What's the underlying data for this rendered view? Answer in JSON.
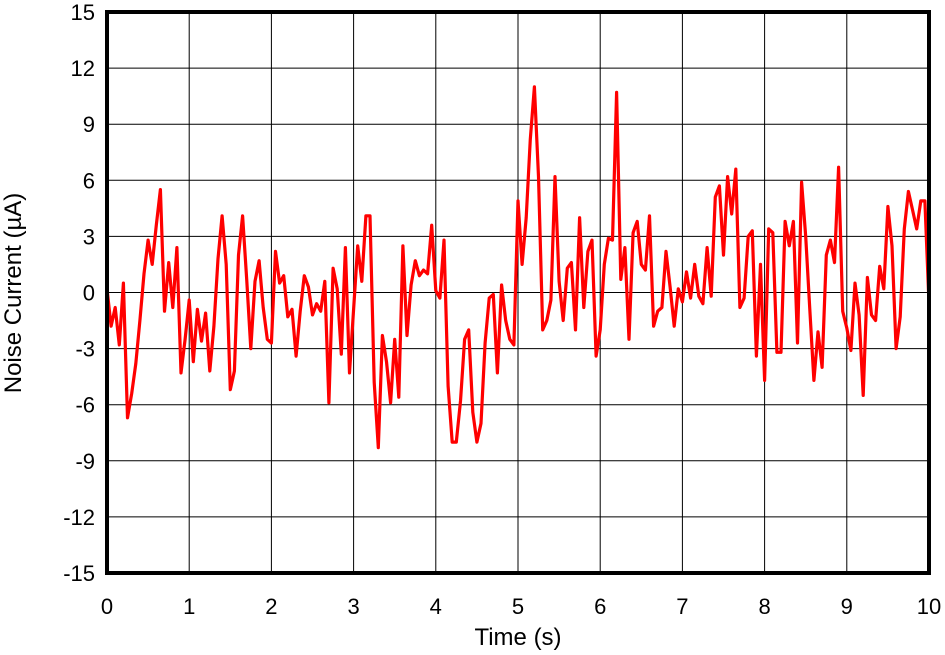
{
  "chart_data": {
    "type": "line",
    "title": "",
    "xlabel": "Time (s)",
    "ylabel": "Noise Current (µA)",
    "xlim": [
      0,
      10
    ],
    "ylim": [
      -15,
      15
    ],
    "x_ticks": [
      0,
      1,
      2,
      3,
      4,
      5,
      6,
      7,
      8,
      9,
      10
    ],
    "y_ticks": [
      15,
      12,
      9,
      6,
      3,
      0,
      -3,
      -6,
      -9,
      -12,
      -15
    ],
    "x_tick_labels": [
      "0",
      "1",
      "2",
      "3",
      "4",
      "5",
      "6",
      "7",
      "8",
      "9",
      "10"
    ],
    "y_tick_labels": [
      "15",
      "12",
      "9",
      "6",
      "3",
      "0",
      "-3",
      "-6",
      "-9",
      "-12",
      "-15"
    ],
    "grid": true,
    "series": [
      {
        "color": "#ff0000",
        "x": [
          0,
          0.05,
          0.1,
          0.15,
          0.2,
          0.25,
          0.3,
          0.35,
          0.4,
          0.45,
          0.5,
          0.55,
          0.6,
          0.65,
          0.7,
          0.75,
          0.8,
          0.85,
          0.9,
          0.95,
          1.0,
          1.05,
          1.1,
          1.15,
          1.2,
          1.25,
          1.3,
          1.35,
          1.4,
          1.45,
          1.5,
          1.55,
          1.6,
          1.65,
          1.7,
          1.75,
          1.8,
          1.85,
          1.9,
          1.95,
          2.0,
          2.05,
          2.1,
          2.15,
          2.2,
          2.25,
          2.3,
          2.35,
          2.4,
          2.45,
          2.5,
          2.55,
          2.6,
          2.65,
          2.7,
          2.75,
          2.8,
          2.85,
          2.9,
          2.95,
          3.0,
          3.05,
          3.1,
          3.15,
          3.2,
          3.25,
          3.3,
          3.35,
          3.4,
          3.45,
          3.5,
          3.55,
          3.6,
          3.65,
          3.7,
          3.75,
          3.8,
          3.85,
          3.9,
          3.95,
          4.0,
          4.05,
          4.1,
          4.15,
          4.2,
          4.25,
          4.3,
          4.35,
          4.4,
          4.45,
          4.5,
          4.55,
          4.6,
          4.65,
          4.7,
          4.75,
          4.8,
          4.85,
          4.9,
          4.95,
          5.0,
          5.05,
          5.1,
          5.15,
          5.2,
          5.25,
          5.3,
          5.35,
          5.4,
          5.45,
          5.5,
          5.55,
          5.6,
          5.65,
          5.7,
          5.75,
          5.8,
          5.85,
          5.9,
          5.95,
          6.0,
          6.05,
          6.1,
          6.15,
          6.2,
          6.25,
          6.3,
          6.35,
          6.4,
          6.45,
          6.5,
          6.55,
          6.6,
          6.65,
          6.7,
          6.75,
          6.8,
          6.85,
          6.9,
          6.95,
          7.0,
          7.05,
          7.1,
          7.15,
          7.2,
          7.25,
          7.3,
          7.35,
          7.4,
          7.45,
          7.5,
          7.55,
          7.6,
          7.65,
          7.7,
          7.75,
          7.8,
          7.85,
          7.9,
          7.95,
          8.0,
          8.05,
          8.1,
          8.15,
          8.2,
          8.25,
          8.3,
          8.35,
          8.4,
          8.45,
          8.5,
          8.55,
          8.6,
          8.65,
          8.7,
          8.75,
          8.8,
          8.85,
          8.9,
          8.95,
          9.0,
          9.05,
          9.1,
          9.15,
          9.2,
          9.25,
          9.3,
          9.35,
          9.4,
          9.45,
          9.5,
          9.55,
          9.6,
          9.65,
          9.7,
          9.75,
          9.8,
          9.85,
          9.9,
          9.95,
          10.0
        ],
        "values": [
          0.2,
          -1.8,
          -0.8,
          -2.8,
          0.5,
          -6.7,
          -5.4,
          -3.8,
          -1.5,
          1.0,
          2.8,
          1.5,
          3.6,
          5.5,
          -1.0,
          1.6,
          -0.8,
          2.4,
          -4.3,
          -2.5,
          -0.4,
          -3.7,
          -0.9,
          -2.6,
          -1.1,
          -4.2,
          -1.8,
          1.8,
          4.1,
          1.5,
          -5.2,
          -4.2,
          2.0,
          4.1,
          0.7,
          -3.0,
          0.6,
          1.7,
          -0.8,
          -2.5,
          -2.7,
          2.2,
          0.5,
          0.9,
          -1.3,
          -0.9,
          -3.4,
          -1.0,
          0.9,
          0.3,
          -1.2,
          -0.6,
          -1.0,
          0.6,
          -5.9,
          1.3,
          0.2,
          -3.3,
          2.4,
          -4.3,
          -0.9,
          2.5,
          0.6,
          4.1,
          4.1,
          -4.8,
          -8.3,
          -2.3,
          -3.7,
          -5.9,
          -2.5,
          -5.6,
          2.5,
          -2.3,
          0.4,
          1.7,
          0.9,
          1.2,
          1.0,
          3.6,
          0.1,
          -0.3,
          2.8,
          -5.0,
          -8.0,
          -8.0,
          -5.8,
          -2.5,
          -2.0,
          -6.4,
          -8.0,
          -7.0,
          -2.7,
          -0.3,
          -0.1,
          -4.3,
          0.4,
          -1.5,
          -2.5,
          -2.8,
          4.9,
          1.5,
          4.0,
          8.2,
          11.0,
          6.2,
          -2.0,
          -1.5,
          -0.4,
          6.2,
          0.6,
          -1.5,
          1.3,
          1.6,
          -2.0,
          4.0,
          -0.8,
          2.2,
          2.8,
          -3.4,
          -2.0,
          1.5,
          2.9,
          2.8,
          10.7,
          0.7,
          2.4,
          -2.5,
          3.2,
          3.8,
          1.5,
          1.2,
          4.1,
          -1.8,
          -1.0,
          -0.8,
          2.2,
          0.3,
          -1.8,
          0.2,
          -0.5,
          1.1,
          -0.3,
          1.5,
          -0.2,
          -0.6,
          2.4,
          -0.2,
          5.1,
          5.7,
          2.0,
          6.2,
          4.2,
          6.6,
          -0.8,
          -0.3,
          3.0,
          3.3,
          -3.4,
          1.5,
          -4.7,
          3.4,
          3.2,
          -3.2,
          -3.2,
          3.8,
          2.5,
          3.8,
          -2.7,
          5.9,
          3.0,
          -0.9,
          -4.7,
          -2.1,
          -4.0,
          2.0,
          2.8,
          1.6,
          6.7,
          -1.0,
          -1.9,
          -3.1,
          0.5,
          -1.2,
          -5.5,
          0.8,
          -1.2,
          -1.5,
          1.4,
          0.2,
          4.6,
          2.5,
          -3.0,
          -1.3,
          3.4,
          5.4,
          4.4,
          3.4,
          4.9,
          4.9,
          -0.6
        ]
      }
    ]
  }
}
